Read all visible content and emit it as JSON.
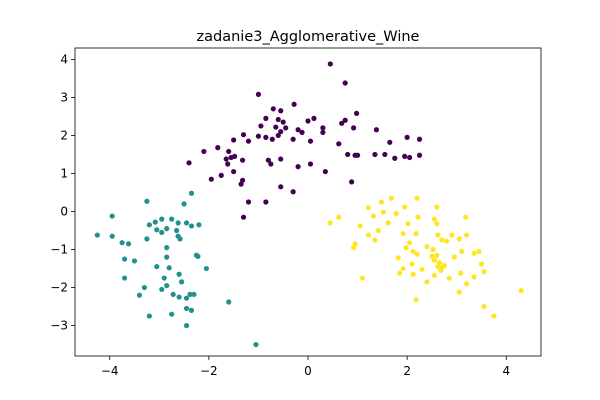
{
  "chart_data": {
    "type": "scatter",
    "title": "zadanie3_Agglomerative_Wine",
    "xlabel": "",
    "ylabel": "",
    "xlim": [
      -4.7,
      4.7
    ],
    "ylim": [
      -3.8,
      4.3
    ],
    "x_ticks": [
      -4,
      -2,
      0,
      2,
      4
    ],
    "y_ticks": [
      -3,
      -2,
      -1,
      0,
      1,
      2,
      3,
      4
    ],
    "grid": false,
    "colors": {
      "cluster_0": "#440154",
      "cluster_1": "#21918c",
      "cluster_2": "#fde725"
    },
    "series": [
      {
        "color": "#440154",
        "points": [
          [
            0.45,
            3.88
          ],
          [
            -1.0,
            3.08
          ],
          [
            0.75,
            3.38
          ],
          [
            -0.7,
            2.7
          ],
          [
            -0.55,
            2.65
          ],
          [
            -0.28,
            2.82
          ],
          [
            0.98,
            2.58
          ],
          [
            -0.85,
            2.45
          ],
          [
            0.75,
            2.4
          ],
          [
            0.68,
            2.32
          ],
          [
            0.12,
            2.45
          ],
          [
            0.0,
            2.38
          ],
          [
            -0.6,
            2.42
          ],
          [
            -0.5,
            2.35
          ],
          [
            -0.65,
            2.22
          ],
          [
            -0.45,
            2.2
          ],
          [
            -0.2,
            2.15
          ],
          [
            0.3,
            2.08
          ],
          [
            0.3,
            2.2
          ],
          [
            -0.95,
            2.25
          ],
          [
            -1.3,
            2.02
          ],
          [
            -0.55,
            2.1
          ],
          [
            -0.12,
            2.08
          ],
          [
            0.92,
            2.2
          ],
          [
            -1.0,
            1.98
          ],
          [
            -1.5,
            1.88
          ],
          [
            -0.85,
            1.95
          ],
          [
            -0.72,
            1.9
          ],
          [
            -0.6,
            2.0
          ],
          [
            -0.3,
            1.9
          ],
          [
            0.05,
            1.85
          ],
          [
            -1.2,
            1.85
          ],
          [
            -2.1,
            1.58
          ],
          [
            -1.82,
            1.68
          ],
          [
            -1.6,
            1.58
          ],
          [
            0.62,
            1.78
          ],
          [
            1.38,
            2.15
          ],
          [
            1.65,
            1.82
          ],
          [
            2.0,
            1.95
          ],
          [
            2.25,
            1.9
          ],
          [
            -1.65,
            1.38
          ],
          [
            -1.55,
            1.42
          ],
          [
            -1.62,
            1.25
          ],
          [
            -1.48,
            1.45
          ],
          [
            -1.32,
            1.35
          ],
          [
            -0.8,
            1.35
          ],
          [
            -0.75,
            1.25
          ],
          [
            -0.55,
            1.38
          ],
          [
            -0.2,
            1.18
          ],
          [
            0.05,
            1.25
          ],
          [
            0.8,
            1.5
          ],
          [
            0.95,
            1.48
          ],
          [
            1.0,
            1.48
          ],
          [
            1.35,
            1.5
          ],
          [
            1.55,
            1.5
          ],
          [
            1.95,
            1.45
          ],
          [
            2.25,
            1.48
          ],
          [
            -2.4,
            1.28
          ],
          [
            -1.95,
            0.85
          ],
          [
            -1.75,
            0.95
          ],
          [
            -1.5,
            1.05
          ],
          [
            -1.32,
            0.82
          ],
          [
            -0.55,
            0.65
          ],
          [
            -0.3,
            0.52
          ],
          [
            0.35,
            1.05
          ],
          [
            0.88,
            0.78
          ],
          [
            1.75,
            1.4
          ],
          [
            2.05,
            1.42
          ],
          [
            -1.35,
            0.72
          ],
          [
            -0.85,
            0.25
          ],
          [
            -1.3,
            -0.15
          ],
          [
            -1.2,
            0.25
          ]
        ]
      },
      {
        "color": "#21918c",
        "points": [
          [
            -3.25,
            0.27
          ],
          [
            -2.35,
            0.48
          ],
          [
            -2.5,
            0.2
          ],
          [
            -3.95,
            -0.12
          ],
          [
            -2.95,
            -0.2
          ],
          [
            -2.75,
            -0.2
          ],
          [
            -3.2,
            -0.35
          ],
          [
            -2.62,
            -0.3
          ],
          [
            -2.45,
            -0.3
          ],
          [
            -2.2,
            -0.35
          ],
          [
            -3.08,
            -0.28
          ],
          [
            -3.05,
            -0.48
          ],
          [
            -2.95,
            -0.55
          ],
          [
            -2.85,
            -0.45
          ],
          [
            -2.65,
            -0.5
          ],
          [
            -2.35,
            -0.38
          ],
          [
            -4.25,
            -0.62
          ],
          [
            -3.95,
            -0.65
          ],
          [
            -3.25,
            -0.72
          ],
          [
            -2.62,
            -0.65
          ],
          [
            -2.58,
            -0.72
          ],
          [
            -3.75,
            -0.82
          ],
          [
            -3.62,
            -0.85
          ],
          [
            -2.85,
            -0.95
          ],
          [
            -3.7,
            -1.25
          ],
          [
            -3.5,
            -1.3
          ],
          [
            -2.85,
            -1.2
          ],
          [
            -2.25,
            -1.15
          ],
          [
            -2.22,
            -1.18
          ],
          [
            -3.05,
            -1.45
          ],
          [
            -2.8,
            -1.48
          ],
          [
            -3.7,
            -1.75
          ],
          [
            -2.6,
            -1.65
          ],
          [
            -2.9,
            -1.75
          ],
          [
            -2.05,
            -1.5
          ],
          [
            -3.3,
            -2.0
          ],
          [
            -2.85,
            -1.95
          ],
          [
            -2.55,
            -1.85
          ],
          [
            -2.95,
            -2.05
          ],
          [
            -3.4,
            -2.2
          ],
          [
            -2.72,
            -2.18
          ],
          [
            -2.6,
            -2.25
          ],
          [
            -2.45,
            -2.28
          ],
          [
            -2.3,
            -2.18
          ],
          [
            -1.6,
            -2.38
          ],
          [
            -2.45,
            -2.55
          ],
          [
            -2.35,
            -2.6
          ],
          [
            -2.75,
            -2.7
          ],
          [
            -3.2,
            -2.75
          ],
          [
            -2.45,
            -3.0
          ],
          [
            -1.05,
            -3.5
          ],
          [
            -2.38,
            -2.18
          ]
        ]
      },
      {
        "color": "#fde725",
        "points": [
          [
            1.68,
            0.35
          ],
          [
            2.2,
            0.35
          ],
          [
            1.48,
            0.25
          ],
          [
            1.95,
            0.12
          ],
          [
            1.22,
            0.1
          ],
          [
            2.6,
            0.12
          ],
          [
            1.52,
            -0.02
          ],
          [
            1.78,
            -0.05
          ],
          [
            0.62,
            -0.15
          ],
          [
            1.32,
            -0.12
          ],
          [
            2.22,
            -0.15
          ],
          [
            2.55,
            -0.2
          ],
          [
            3.18,
            -0.15
          ],
          [
            0.45,
            -0.3
          ],
          [
            1.62,
            -0.3
          ],
          [
            2.02,
            -0.32
          ],
          [
            2.6,
            -0.32
          ],
          [
            1.05,
            -0.38
          ],
          [
            1.22,
            -0.62
          ],
          [
            1.42,
            -0.5
          ],
          [
            1.92,
            -0.58
          ],
          [
            2.18,
            -0.58
          ],
          [
            2.62,
            -0.62
          ],
          [
            2.9,
            -0.62
          ],
          [
            3.2,
            -0.62
          ],
          [
            1.35,
            -0.75
          ],
          [
            2.05,
            -0.82
          ],
          [
            2.7,
            -0.75
          ],
          [
            3.05,
            -0.72
          ],
          [
            0.95,
            -0.85
          ],
          [
            1.98,
            -0.95
          ],
          [
            2.4,
            -0.92
          ],
          [
            2.8,
            -0.78
          ],
          [
            0.92,
            -0.95
          ],
          [
            2.12,
            -1.05
          ],
          [
            2.52,
            -1.0
          ],
          [
            2.2,
            -1.12
          ],
          [
            2.5,
            -1.18
          ],
          [
            2.6,
            -1.15
          ],
          [
            3.1,
            -1.05
          ],
          [
            3.35,
            -1.1
          ],
          [
            3.45,
            -1.05
          ],
          [
            1.82,
            -1.22
          ],
          [
            2.55,
            -1.28
          ],
          [
            2.65,
            -1.35
          ],
          [
            2.95,
            -1.2
          ],
          [
            2.1,
            -1.38
          ],
          [
            2.75,
            -1.42
          ],
          [
            2.62,
            -1.45
          ],
          [
            3.5,
            -1.38
          ],
          [
            1.92,
            -1.5
          ],
          [
            2.3,
            -1.52
          ],
          [
            2.68,
            -1.55
          ],
          [
            3.55,
            -1.58
          ],
          [
            1.85,
            -1.62
          ],
          [
            2.12,
            -1.65
          ],
          [
            2.55,
            -1.68
          ],
          [
            3.08,
            -1.62
          ],
          [
            1.1,
            -1.75
          ],
          [
            2.4,
            -1.85
          ],
          [
            2.85,
            -1.75
          ],
          [
            3.35,
            -1.72
          ],
          [
            3.2,
            -1.9
          ],
          [
            3.05,
            -2.12
          ],
          [
            2.18,
            -2.32
          ],
          [
            4.3,
            -2.08
          ],
          [
            3.55,
            -2.5
          ],
          [
            3.75,
            -2.75
          ],
          [
            2.7,
            -1.48
          ]
        ]
      }
    ]
  }
}
